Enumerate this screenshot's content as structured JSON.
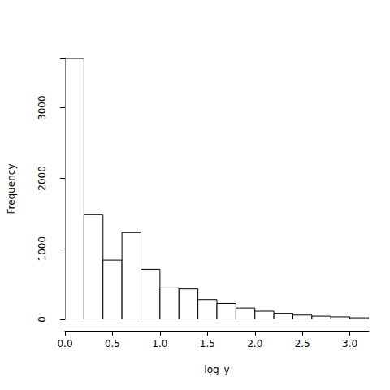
{
  "chart_data": {
    "type": "histogram",
    "x_label": "log_y",
    "y_label": "Frequency",
    "bins": [
      0,
      0.2,
      0.4,
      0.6,
      0.8,
      1.0,
      1.2,
      1.4,
      1.6,
      1.8,
      2.0,
      2.2,
      2.4,
      2.6,
      2.8,
      3.0,
      3.2
    ],
    "values": [
      3700,
      1490,
      840,
      1230,
      710,
      445,
      430,
      280,
      225,
      160,
      115,
      85,
      60,
      45,
      35,
      22
    ],
    "color": "#ffffff",
    "xlim": [
      0,
      3.2
    ],
    "xticks": [
      {
        "value": 0,
        "label": "0.0"
      },
      {
        "value": 0.5,
        "label": "0.5"
      },
      {
        "value": 1,
        "label": "1.0"
      },
      {
        "value": 1.5,
        "label": "1.5"
      },
      {
        "value": 2,
        "label": "2.0"
      },
      {
        "value": 2.5,
        "label": "2.5"
      },
      {
        "value": 3,
        "label": "3.0"
      }
    ],
    "ylim": [
      0,
      3700
    ],
    "yticks": [
      0,
      1000,
      2000,
      3000
    ],
    "grid": false
  }
}
